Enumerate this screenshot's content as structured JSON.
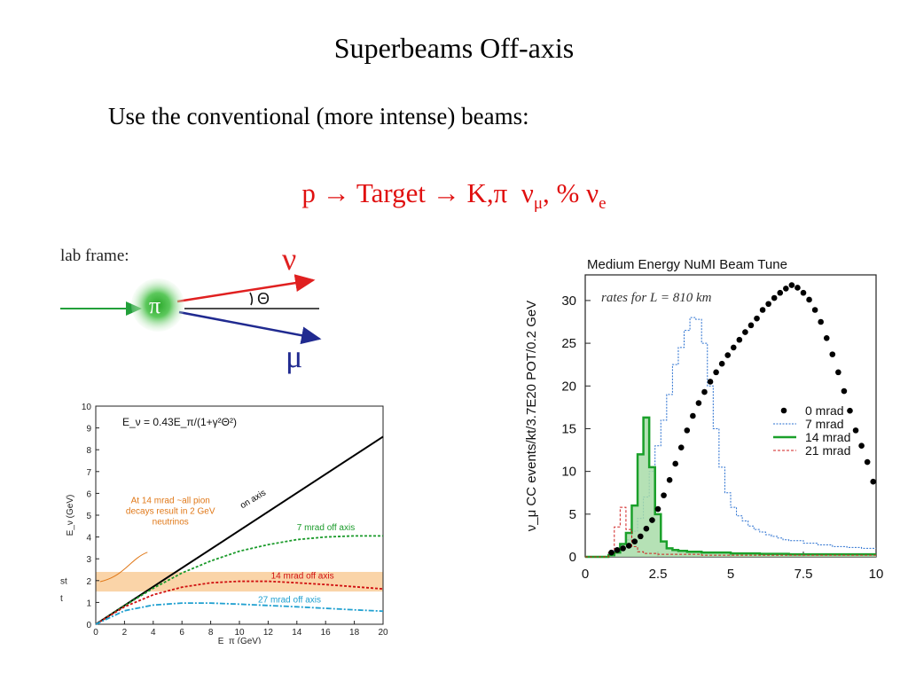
{
  "slide": {
    "title": "Superbeams Off-axis",
    "subtitle": "Use the conventional (more intense) beams:",
    "formula": {
      "p": "p",
      "arrow1": "→",
      "target": "Target",
      "arrow2": "→",
      "mesons": "K,π",
      "nu1": "ν",
      "nu1_sub": "μ",
      "sep": ", %",
      "nu2": "ν",
      "nu2_sub": "e"
    },
    "colors": {
      "formula": "#e01010"
    }
  },
  "lab_frame": {
    "label": "lab frame:",
    "pion": "π",
    "nu": "ν",
    "mu": "μ",
    "angle": "Θ",
    "colors": {
      "incoming": "#22a03a",
      "nu": "#e02020",
      "mu": "#202a90",
      "pion": "#48c048"
    }
  },
  "chart_data": [
    {
      "type": "line",
      "title": "",
      "formula": "E_ν = 0.43E_π/(1+γ²Θ²)",
      "xlabel": "E_π (GeV)",
      "ylabel": "E_ν (GeV)",
      "xlim": [
        0,
        20
      ],
      "ylim": [
        0,
        10
      ],
      "x_ticks": [
        "0",
        "2",
        "4",
        "6",
        "8",
        "10",
        "12",
        "14",
        "16",
        "18",
        "20"
      ],
      "y_ticks": [
        "0",
        "1",
        "2",
        "3",
        "4",
        "5",
        "6",
        "7",
        "8",
        "9",
        "10"
      ],
      "band": {
        "y": [
          1.5,
          2.4
        ],
        "color": "#f5b060"
      },
      "annotation": "At 14 mrad ~all pion decays result in 2 GeV neutrinos",
      "cut_text": [
        "st",
        "t"
      ],
      "series": [
        {
          "name": "on axis",
          "color": "#000000",
          "x": [
            0,
            20
          ],
          "y": [
            0,
            8.6
          ]
        },
        {
          "name": "7 mrad off axis",
          "color": "#1a9a2a",
          "x": [
            0,
            2,
            4,
            6,
            8,
            10,
            12,
            14,
            16,
            18,
            20
          ],
          "y": [
            0,
            0.85,
            1.65,
            2.35,
            2.9,
            3.35,
            3.65,
            3.88,
            4.0,
            4.05,
            4.05
          ]
        },
        {
          "name": "14 mrad off axis",
          "color": "#d01010",
          "x": [
            0,
            2,
            4,
            6,
            8,
            10,
            12,
            14,
            16,
            18,
            20
          ],
          "y": [
            0,
            0.8,
            1.35,
            1.7,
            1.9,
            1.97,
            1.97,
            1.9,
            1.82,
            1.72,
            1.62
          ]
        },
        {
          "name": "27 mrad off axis",
          "color": "#20a0d0",
          "x": [
            0,
            2,
            4,
            6,
            8,
            10,
            12,
            14,
            16,
            18,
            20
          ],
          "y": [
            0,
            0.62,
            0.88,
            0.97,
            0.97,
            0.92,
            0.86,
            0.8,
            0.73,
            0.66,
            0.6
          ]
        }
      ]
    },
    {
      "type": "line",
      "title": "Medium Energy NuMI Beam Tune",
      "annotation": "rates for L = 810 km",
      "xlabel": "",
      "ylabel": "ν_μ CC events/kt/3.7E20 POT/0.2 GeV",
      "xlim": [
        0,
        10
      ],
      "ylim": [
        0,
        33
      ],
      "x_ticks": [
        "0",
        "2.5",
        "5",
        "7.5",
        "10"
      ],
      "y_ticks": [
        "0",
        "5",
        "10",
        "15",
        "20",
        "25",
        "30"
      ],
      "legend": {
        "position": "right",
        "entries": [
          "0 mrad",
          "7 mrad",
          "14 mrad",
          "21 mrad"
        ]
      },
      "series": [
        {
          "name": "0 mrad",
          "style": "dots",
          "color": "#000000",
          "x": [
            0.9,
            1.1,
            1.3,
            1.5,
            1.7,
            1.9,
            2.1,
            2.3,
            2.5,
            2.7,
            2.9,
            3.1,
            3.3,
            3.5,
            3.7,
            3.9,
            4.1,
            4.3,
            4.5,
            4.7,
            4.9,
            5.1,
            5.3,
            5.5,
            5.7,
            5.9,
            6.1,
            6.3,
            6.5,
            6.7,
            6.9,
            7.1,
            7.3,
            7.5,
            7.7,
            7.9,
            8.1,
            8.3,
            8.5,
            8.7,
            8.9,
            9.1,
            9.3,
            9.5,
            9.7,
            9.9
          ],
          "y": [
            0.5,
            0.8,
            1.0,
            1.3,
            1.8,
            2.4,
            3.3,
            4.3,
            5.6,
            7.2,
            9.0,
            10.9,
            12.8,
            14.8,
            16.5,
            18.0,
            19.3,
            20.5,
            21.6,
            22.6,
            23.6,
            24.5,
            25.4,
            26.3,
            27.1,
            27.9,
            28.9,
            29.6,
            30.3,
            30.9,
            31.4,
            31.8,
            31.5,
            30.9,
            30.1,
            28.9,
            27.5,
            25.6,
            23.7,
            21.6,
            19.4,
            17.1,
            14.8,
            13.0,
            11.1,
            8.8
          ]
        },
        {
          "name": "7 mrad",
          "style": "step",
          "color": "#2a70d0",
          "x": [
            0,
            0.8,
            1.0,
            1.2,
            1.4,
            1.6,
            1.8,
            2.0,
            2.2,
            2.4,
            2.6,
            2.8,
            3.0,
            3.2,
            3.4,
            3.6,
            3.8,
            4.0,
            4.2,
            4.4,
            4.6,
            4.8,
            5.0,
            5.2,
            5.4,
            5.6,
            5.8,
            6.0,
            6.2,
            6.4,
            6.6,
            6.8,
            7.0,
            7.5,
            8.0,
            8.5,
            9.0,
            9.5,
            10
          ],
          "y": [
            0,
            0.5,
            1.0,
            1.5,
            2.0,
            3.0,
            4.5,
            7.0,
            10.0,
            13.0,
            16.0,
            19.0,
            22.5,
            24.5,
            26.5,
            28.0,
            27.8,
            25.0,
            20.0,
            15.0,
            10.5,
            7.5,
            5.8,
            4.8,
            4.2,
            3.6,
            3.2,
            2.9,
            2.6,
            2.4,
            2.2,
            2.0,
            1.9,
            1.6,
            1.4,
            1.2,
            1.1,
            1.0,
            1.0
          ]
        },
        {
          "name": "14 mrad",
          "style": "step-filled",
          "color": "#1aa02a",
          "fill": "#a8dca8",
          "x": [
            0,
            0.8,
            1.0,
            1.2,
            1.4,
            1.6,
            1.8,
            2.0,
            2.2,
            2.4,
            2.6,
            2.8,
            3.0,
            3.2,
            3.5,
            4.0,
            5.0,
            6.0,
            7.0,
            8.0,
            9.0,
            10
          ],
          "y": [
            0,
            0.2,
            0.5,
            1.5,
            2.8,
            6.0,
            12.0,
            16.3,
            10.5,
            5.0,
            1.8,
            1.0,
            0.8,
            0.7,
            0.6,
            0.5,
            0.4,
            0.35,
            0.3,
            0.3,
            0.3,
            0.3
          ]
        },
        {
          "name": "21 mrad",
          "style": "step-dashed",
          "color": "#d02020",
          "x": [
            0,
            0.8,
            1.0,
            1.2,
            1.4,
            1.6,
            1.8,
            2.0,
            2.5,
            3.0,
            4.0,
            5.0,
            6.0,
            7.0,
            8.0,
            9.0,
            10
          ],
          "y": [
            0,
            0.5,
            3.5,
            5.8,
            3.2,
            1.2,
            0.6,
            0.4,
            0.3,
            0.3,
            0.2,
            0.2,
            0.2,
            0.2,
            0.2,
            0.2,
            0.2
          ]
        }
      ]
    }
  ]
}
